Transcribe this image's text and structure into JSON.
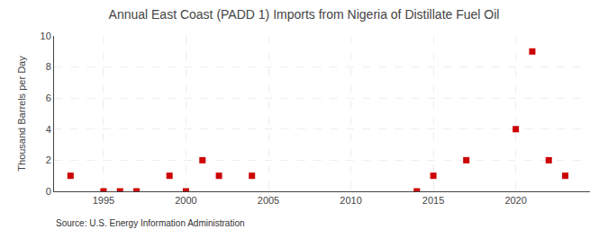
{
  "chart_data": {
    "type": "scatter",
    "title": "Annual East Coast (PADD 1) Imports from Nigeria of Distillate Fuel Oil",
    "ylabel": "Thousand Barrels per Day",
    "annotations": [
      "Source: U.S. Energy Information Administration"
    ],
    "x": [
      1993,
      1995,
      1996,
      1997,
      1999,
      2000,
      2001,
      2002,
      2004,
      2014,
      2015,
      2017,
      2020,
      2021,
      2022,
      2023
    ],
    "values": [
      1,
      0,
      0,
      0,
      1,
      0,
      2,
      1,
      1,
      0,
      1,
      2,
      4,
      9,
      2,
      1
    ],
    "color": "#cc0000",
    "marker": "square",
    "xlim": [
      1992,
      2024.5
    ],
    "xticks": [
      1995,
      2000,
      2005,
      2010,
      2015,
      2020
    ],
    "ylim": [
      0,
      10
    ],
    "yticks": [
      0,
      2,
      4,
      6,
      8,
      10
    ],
    "grid": true
  }
}
